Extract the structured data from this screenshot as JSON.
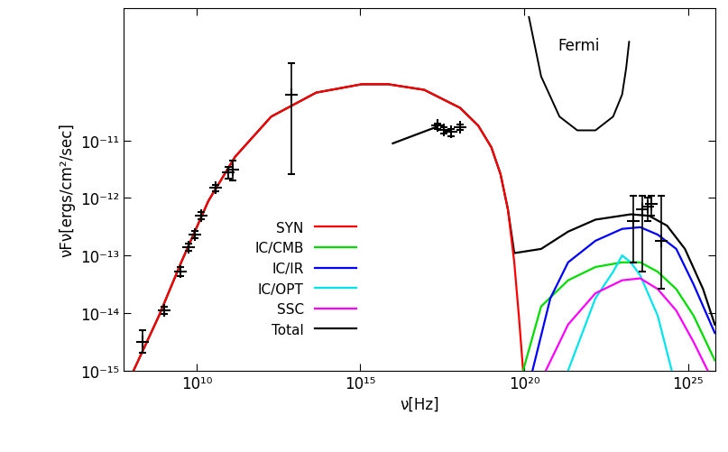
{
  "chart_data": {
    "type": "line",
    "log": true,
    "xlabel": "ν[Hz]",
    "ylabel": "νFν[ergs/cm²/sec]",
    "xlim": [
      60000000.0,
      7e+25
    ],
    "ylim": [
      1e-15,
      2e-09
    ],
    "xticks": [
      {
        "value": 10000000000.0,
        "label": "10¹⁰"
      },
      {
        "value": 1000000000000000.0,
        "label": "10¹⁵"
      },
      {
        "value": 1e+20,
        "label": "10²⁰"
      },
      {
        "value": 1e+25,
        "label": "10²⁵"
      }
    ],
    "yticks": [
      {
        "value": 1e-15,
        "label": "10⁻¹⁵"
      },
      {
        "value": 1e-14,
        "label": "10⁻¹⁴"
      },
      {
        "value": 1e-13,
        "label": "10⁻¹³"
      },
      {
        "value": 1e-12,
        "label": "10⁻¹²"
      },
      {
        "value": 1e-11,
        "label": "10⁻¹¹"
      }
    ],
    "legend": "lower left",
    "series": [
      {
        "name": "SYN",
        "color": "#ff0000",
        "x": [
          120000000.0,
          710000000.0,
          3400000000.0,
          23000000000.0,
          150000000000.0,
          1900000000000.0,
          45000000000000.0,
          1100000000000000.0,
          7100000000000000.0,
          8.9e+16,
          1.1e+18,
          4e+18,
          1e+19,
          1.9e+19,
          3.2e+19,
          5e+19,
          6.9e+19,
          9.3e+19
        ],
        "values": [
          1e-15,
          8.9e-15,
          7.6e-14,
          8.9e-13,
          5.2e-12,
          2.6e-11,
          6.8e-11,
          9.5e-11,
          9.5e-11,
          7.6e-11,
          3.7e-11,
          1.8e-11,
          7.6e-12,
          2.6e-12,
          6.3e-13,
          7.6e-14,
          8.9e-15,
          1e-15
        ]
      },
      {
        "name": "IC/CMB",
        "color": "#00dd00",
        "x": [
          9.3e+19,
          3.3e+20,
          2.2e+21,
          1.5e+22,
          9.8e+22,
          3.5e+23,
          1.2e+24,
          4.4e+24,
          1.5e+25,
          6.6e+25
        ],
        "values": [
          1e-15,
          1.3e-14,
          3.7e-14,
          6.3e-14,
          7.6e-14,
          7.6e-14,
          5.2e-14,
          2.6e-14,
          8.9e-15,
          1.5e-15
        ]
      },
      {
        "name": "IC/IR",
        "color": "#0000ff",
        "x": [
          1.8e+20,
          6.3e+20,
          2.2e+21,
          1.5e+22,
          9.8e+22,
          3.5e+23,
          1.2e+24,
          4.4e+24,
          1.5e+25,
          6.6e+25
        ],
        "values": [
          1e-15,
          1.8e-14,
          7.6e-14,
          1.8e-13,
          2.9e-13,
          3.1e-13,
          2.3e-13,
          1.3e-13,
          3.1e-14,
          4.5e-15
        ]
      },
      {
        "name": "IC/OPT",
        "color": "#00e5ee",
        "x": [
          2.2e+21,
          1.5e+22,
          5.2e+22,
          9.8e+22,
          1.8e+23,
          3.5e+23,
          1.2e+24,
          3.2e+24
        ],
        "values": [
          1e-15,
          1.8e-14,
          5.2e-14,
          1e-13,
          7.6e-14,
          4.5e-14,
          8.9e-15,
          1e-15
        ]
      },
      {
        "name": "SSC",
        "color": "#ff00ff",
        "x": [
          4.6e+20,
          2.2e+21,
          1.5e+22,
          9.8e+22,
          3.5e+23,
          1.2e+24,
          4.4e+24,
          1.5e+25,
          4e+25
        ],
        "values": [
          1e-15,
          6.3e-15,
          2.2e-14,
          3.7e-14,
          4e-14,
          2.6e-14,
          1.1e-14,
          3.1e-15,
          1e-15
        ]
      },
      {
        "name": "Total",
        "color": "#000000",
        "x": [
          120000000.0,
          710000000.0,
          3400000000.0,
          23000000000.0,
          150000000000.0,
          1900000000000.0,
          45000000000000.0,
          1100000000000000.0,
          7100000000000000.0,
          8.9e+16,
          1.1e+18,
          4e+18,
          1e+19,
          1.9e+19,
          3.2e+19,
          5e+19,
          3.3e+20,
          2.2e+21,
          1.5e+22,
          1.8e+23,
          6.5e+23,
          2.3e+24,
          8.1e+24,
          2.9e+25,
          6.6e+25
        ],
        "values": [
          1e-15,
          8.9e-15,
          7.6e-14,
          8.9e-13,
          5.2e-12,
          2.6e-11,
          6.8e-11,
          9.5e-11,
          9.5e-11,
          7.6e-11,
          3.7e-11,
          1.8e-11,
          7.6e-12,
          2.6e-12,
          6.3e-13,
          1.1e-13,
          1.3e-13,
          2.6e-13,
          4.2e-13,
          5.2e-13,
          4.9e-13,
          3.3e-13,
          1.3e-13,
          2.6e-14,
          6.3e-15
        ]
      }
    ],
    "points": {
      "color": "#000000",
      "marker": "+",
      "x": [
        220000000.0,
        1000000000.0,
        3200000000.0,
        5600000000.0,
        8900000000.0,
        14000000000.0,
        38000000000.0,
        91000000000.0,
        130000000000.0,
        8100000000000.0,
        2.2e+17,
        3.5e+17,
        5.9e+17,
        1.1e+18,
        2.2e+23,
        4e+23,
        5.8e+23,
        7.4e+23,
        1.5e+24
      ],
      "values": [
        3.1e-15,
        1.1e-14,
        5.2e-14,
        1.4e-13,
        2.3e-13,
        4.9e-13,
        1.5e-12,
        2.8e-12,
        3.1e-12,
        6.3e-11,
        1.8e-11,
        1.5e-11,
        1.4e-11,
        1.7e-11,
        4e-13,
        6.3e-13,
        7e-13,
        8e-13,
        1.8e-13
      ],
      "low": [
        2e-15,
        9.5e-15,
        4.4e-14,
        1.2e-13,
        2e-13,
        4.3e-13,
        1.3e-12,
        2.2e-12,
        2e-12,
        2.6e-12,
        1.6e-11,
        1.3e-11,
        1.2e-11,
        1.5e-11,
        7.6e-14,
        5.2e-14,
        4e-13,
        5e-13,
        2.6e-14
      ],
      "high": [
        5e-15,
        1.3e-14,
        6.2e-14,
        1.6e-13,
        2.7e-13,
        5.6e-13,
        1.7e-12,
        3.5e-12,
        4.5e-12,
        2.2e-10,
        2e-11,
        1.7e-11,
        1.6e-11,
        1.9e-11,
        1.1e-12,
        1.1e-12,
        1e-12,
        1.1e-12,
        1.1e-12
      ]
    },
    "lines": [
      {
        "color": "#000000",
        "x": [
          9800000000000000.0,
          2e+17
        ],
        "values": [
          8.9e-12,
          1.7e-11
        ]
      }
    ],
    "sensitivity": {
      "label": "Fermi",
      "color": "#000000",
      "x": [
        1.4e+20,
        3.3e+20,
        1.2e+21,
        4.2e+21,
        1.5e+22,
        5.2e+22,
        9.8e+22,
        1.3e+23,
        1.6e+23
      ],
      "values": [
        1.4e-09,
        1.3e-10,
        2.6e-11,
        1.5e-11,
        1.5e-11,
        2.6e-11,
        6.3e-11,
        1.8e-10,
        5.2e-10
      ]
    }
  }
}
